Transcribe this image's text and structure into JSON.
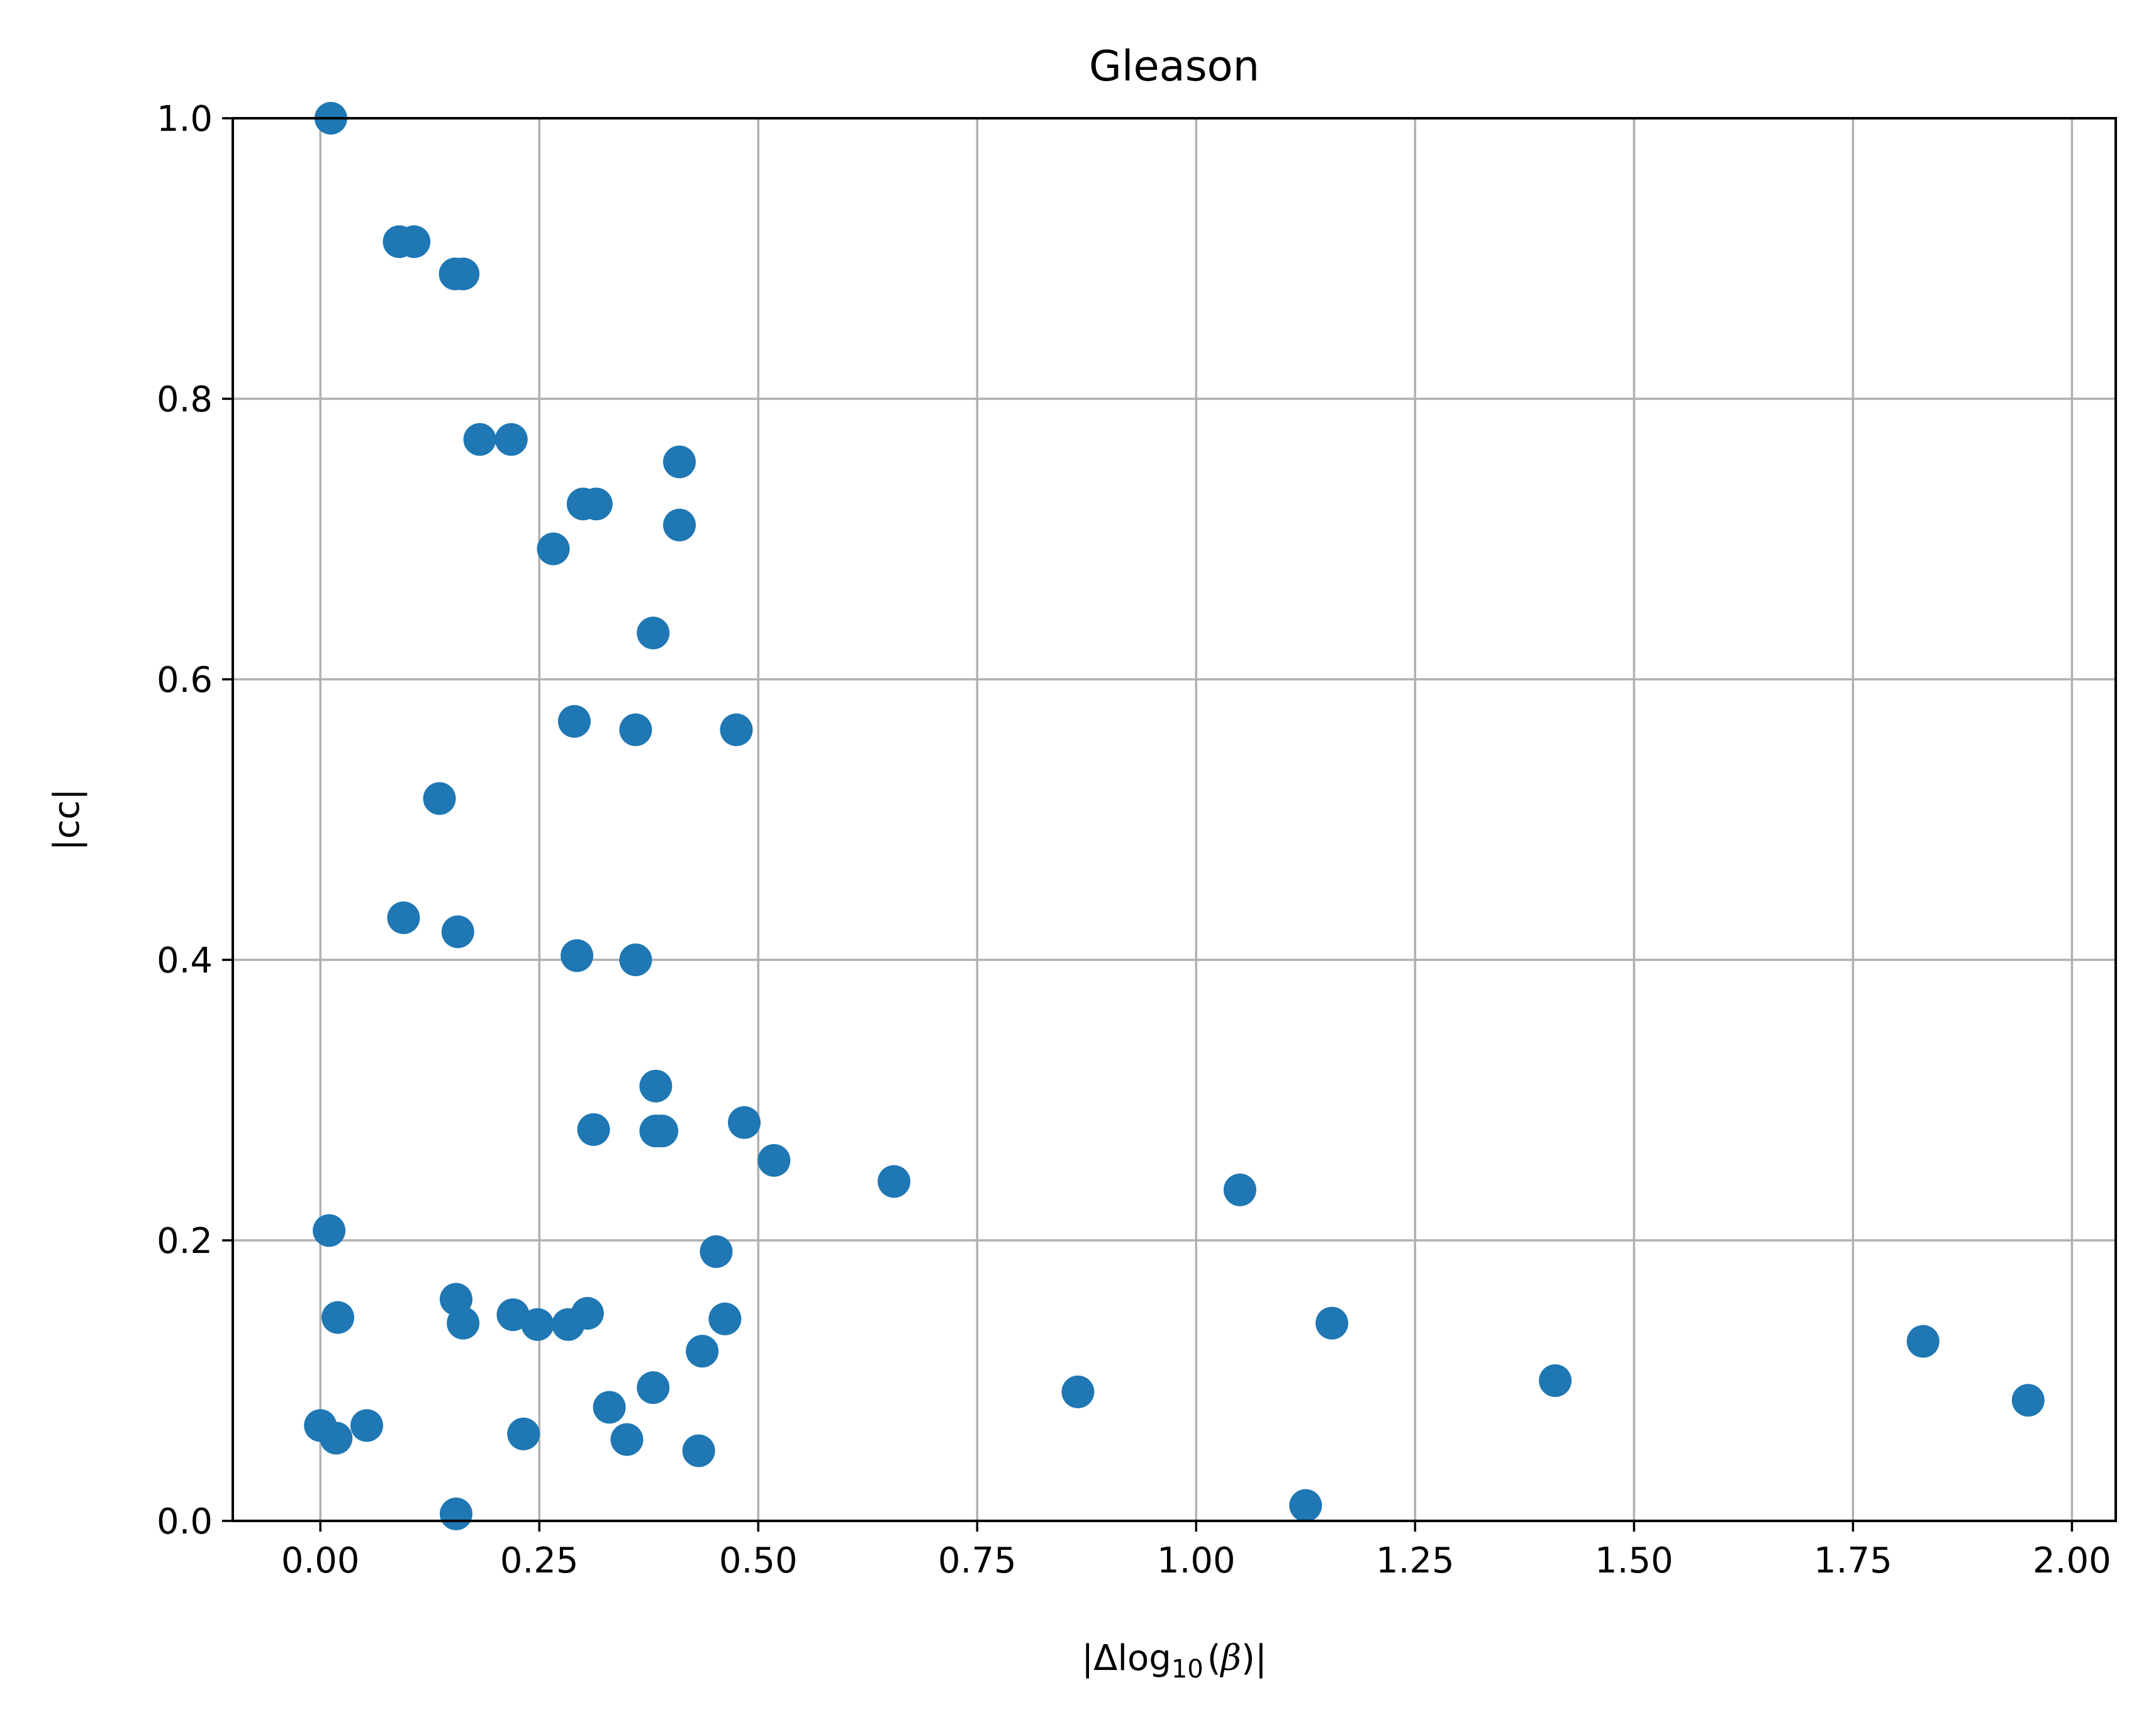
{
  "chart_data": {
    "type": "scatter",
    "title": "Gleason",
    "xlabel": "|Δlog10(β)|",
    "xlabel_parts": {
      "open": "|Δlog",
      "sub": "10",
      "paren_open": "(",
      "beta": "β",
      "close": ")|"
    },
    "ylabel": "|cc|",
    "xlim": [
      -0.1,
      2.05
    ],
    "ylim": [
      0.0,
      1.0
    ],
    "grid": true,
    "marker_color": "#1f77b4",
    "x_ticks": [
      0.0,
      0.25,
      0.5,
      0.75,
      1.0,
      1.25,
      1.5,
      1.75,
      2.0
    ],
    "x_tick_labels": [
      "0.00",
      "0.25",
      "0.50",
      "0.75",
      "1.00",
      "1.25",
      "1.50",
      "1.75",
      "2.00"
    ],
    "y_ticks": [
      0.0,
      0.2,
      0.4,
      0.6,
      0.8,
      1.0
    ],
    "y_tick_labels": [
      "0.0",
      "0.2",
      "0.4",
      "0.6",
      "0.8",
      "1.0"
    ],
    "points": [
      [
        0.012,
        1.0
      ],
      [
        0.09,
        0.912
      ],
      [
        0.107,
        0.912
      ],
      [
        0.154,
        0.889
      ],
      [
        0.163,
        0.889
      ],
      [
        0.182,
        0.771
      ],
      [
        0.218,
        0.771
      ],
      [
        0.41,
        0.755
      ],
      [
        0.3,
        0.725
      ],
      [
        0.315,
        0.725
      ],
      [
        0.41,
        0.71
      ],
      [
        0.266,
        0.693
      ],
      [
        0.38,
        0.633
      ],
      [
        0.29,
        0.57
      ],
      [
        0.36,
        0.564
      ],
      [
        0.475,
        0.564
      ],
      [
        0.136,
        0.515
      ],
      [
        0.095,
        0.43
      ],
      [
        0.157,
        0.42
      ],
      [
        0.293,
        0.403
      ],
      [
        0.36,
        0.4
      ],
      [
        0.383,
        0.31
      ],
      [
        0.312,
        0.279
      ],
      [
        0.383,
        0.278
      ],
      [
        0.39,
        0.278
      ],
      [
        0.484,
        0.284
      ],
      [
        0.518,
        0.257
      ],
      [
        0.655,
        0.242
      ],
      [
        1.05,
        0.236
      ],
      [
        0.01,
        0.207
      ],
      [
        0.452,
        0.192
      ],
      [
        0.155,
        0.158
      ],
      [
        0.22,
        0.147
      ],
      [
        0.305,
        0.148
      ],
      [
        0.248,
        0.14
      ],
      [
        0.283,
        0.14
      ],
      [
        0.163,
        0.141
      ],
      [
        0.462,
        0.144
      ],
      [
        0.02,
        0.145
      ],
      [
        1.155,
        0.141
      ],
      [
        1.83,
        0.128
      ],
      [
        0.436,
        0.121
      ],
      [
        1.41,
        0.1
      ],
      [
        0.38,
        0.095
      ],
      [
        0.865,
        0.092
      ],
      [
        1.95,
        0.086
      ],
      [
        0.33,
        0.081
      ],
      [
        0.0,
        0.068
      ],
      [
        0.053,
        0.068
      ],
      [
        0.018,
        0.059
      ],
      [
        0.232,
        0.062
      ],
      [
        0.35,
        0.058
      ],
      [
        0.432,
        0.05
      ],
      [
        1.125,
        0.011
      ],
      [
        0.155,
        0.005
      ]
    ]
  }
}
